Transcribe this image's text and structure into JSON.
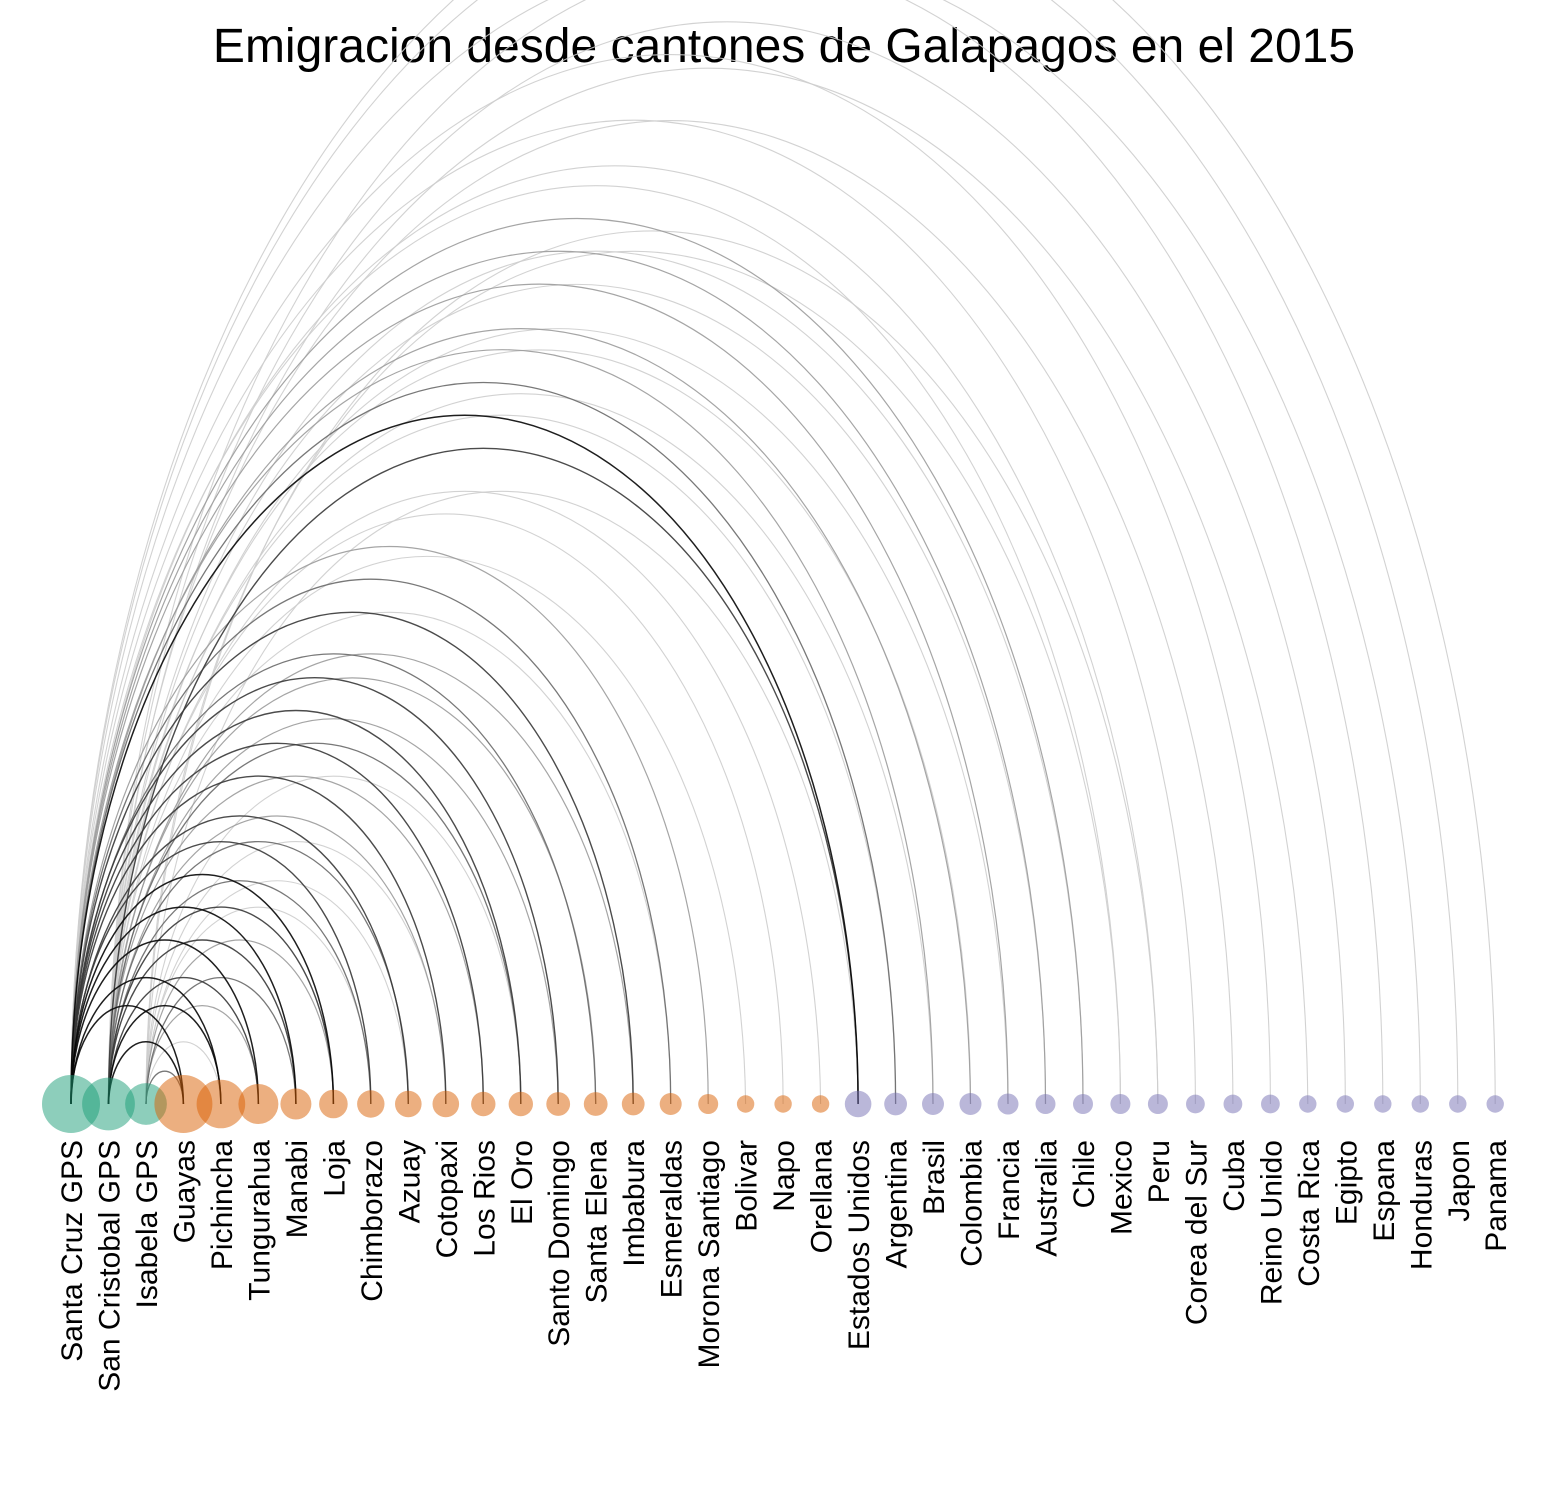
{
  "chart_data": {
    "type": "arc-diagram",
    "title": "Emigracion desde cantones de Galapagos en el 2015",
    "groups": {
      "galapagos": {
        "color": "#1b9e77"
      },
      "ecuador": {
        "color": "#d95f02"
      },
      "foreign": {
        "color": "#7570b3"
      }
    },
    "nodes": [
      {
        "name": "Santa Cruz GPS",
        "group": "galapagos",
        "size": 100
      },
      {
        "name": "San Cristobal GPS",
        "group": "galapagos",
        "size": 80
      },
      {
        "name": "Isabela GPS",
        "group": "galapagos",
        "size": 45
      },
      {
        "name": "Guayas",
        "group": "ecuador",
        "size": 100
      },
      {
        "name": "Pichincha",
        "group": "ecuador",
        "size": 65
      },
      {
        "name": "Tungurahua",
        "group": "ecuador",
        "size": 40
      },
      {
        "name": "Manabi",
        "group": "ecuador",
        "size": 20
      },
      {
        "name": "Loja",
        "group": "ecuador",
        "size": 16
      },
      {
        "name": "Chimborazo",
        "group": "ecuador",
        "size": 14
      },
      {
        "name": "Azuay",
        "group": "ecuador",
        "size": 13
      },
      {
        "name": "Cotopaxi",
        "group": "ecuador",
        "size": 13
      },
      {
        "name": "Los Rios",
        "group": "ecuador",
        "size": 10
      },
      {
        "name": "El Oro",
        "group": "ecuador",
        "size": 10
      },
      {
        "name": "Santo Domingo",
        "group": "ecuador",
        "size": 9
      },
      {
        "name": "Santa Elena",
        "group": "ecuador",
        "size": 9
      },
      {
        "name": "Imbabura",
        "group": "ecuador",
        "size": 8
      },
      {
        "name": "Esmeraldas",
        "group": "ecuador",
        "size": 7
      },
      {
        "name": "Morona Santiago",
        "group": "ecuador",
        "size": 5
      },
      {
        "name": "Bolivar",
        "group": "ecuador",
        "size": 3
      },
      {
        "name": "Napo",
        "group": "ecuador",
        "size": 3
      },
      {
        "name": "Orellana",
        "group": "ecuador",
        "size": 3
      },
      {
        "name": "Estados Unidos",
        "group": "foreign",
        "size": 13
      },
      {
        "name": "Argentina",
        "group": "foreign",
        "size": 8
      },
      {
        "name": "Brasil",
        "group": "foreign",
        "size": 7
      },
      {
        "name": "Colombia",
        "group": "foreign",
        "size": 7
      },
      {
        "name": "Francia",
        "group": "foreign",
        "size": 6
      },
      {
        "name": "Australia",
        "group": "foreign",
        "size": 5
      },
      {
        "name": "Chile",
        "group": "foreign",
        "size": 5
      },
      {
        "name": "Mexico",
        "group": "foreign",
        "size": 5
      },
      {
        "name": "Peru",
        "group": "foreign",
        "size": 5
      },
      {
        "name": "Corea del Sur",
        "group": "foreign",
        "size": 4
      },
      {
        "name": "Cuba",
        "group": "foreign",
        "size": 4
      },
      {
        "name": "Reino Unido",
        "group": "foreign",
        "size": 4
      },
      {
        "name": "Costa Rica",
        "group": "foreign",
        "size": 3
      },
      {
        "name": "Egipto",
        "group": "foreign",
        "size": 3
      },
      {
        "name": "Espana",
        "group": "foreign",
        "size": 3
      },
      {
        "name": "Honduras",
        "group": "foreign",
        "size": 3
      },
      {
        "name": "Japon",
        "group": "foreign",
        "size": 3
      },
      {
        "name": "Panama",
        "group": "foreign",
        "size": 3
      }
    ],
    "edges": [
      {
        "source": "Santa Cruz GPS",
        "target": "Guayas",
        "weight": 5
      },
      {
        "source": "Santa Cruz GPS",
        "target": "Pichincha",
        "weight": 5
      },
      {
        "source": "Santa Cruz GPS",
        "target": "Tungurahua",
        "weight": 5
      },
      {
        "source": "Santa Cruz GPS",
        "target": "Manabi",
        "weight": 5
      },
      {
        "source": "Santa Cruz GPS",
        "target": "Loja",
        "weight": 5
      },
      {
        "source": "Santa Cruz GPS",
        "target": "Chimborazo",
        "weight": 4
      },
      {
        "source": "Santa Cruz GPS",
        "target": "Azuay",
        "weight": 4
      },
      {
        "source": "Santa Cruz GPS",
        "target": "Cotopaxi",
        "weight": 4
      },
      {
        "source": "Santa Cruz GPS",
        "target": "Los Rios",
        "weight": 4
      },
      {
        "source": "Santa Cruz GPS",
        "target": "El Oro",
        "weight": 4
      },
      {
        "source": "Santa Cruz GPS",
        "target": "Santo Domingo",
        "weight": 4
      },
      {
        "source": "Santa Cruz GPS",
        "target": "Santa Elena",
        "weight": 3
      },
      {
        "source": "Santa Cruz GPS",
        "target": "Imbabura",
        "weight": 4
      },
      {
        "source": "Santa Cruz GPS",
        "target": "Esmeraldas",
        "weight": 3
      },
      {
        "source": "Santa Cruz GPS",
        "target": "Morona Santiago",
        "weight": 2
      },
      {
        "source": "Santa Cruz GPS",
        "target": "Estados Unidos",
        "weight": 5
      },
      {
        "source": "Santa Cruz GPS",
        "target": "Argentina",
        "weight": 3
      },
      {
        "source": "Santa Cruz GPS",
        "target": "Brasil",
        "weight": 2
      },
      {
        "source": "Santa Cruz GPS",
        "target": "Colombia",
        "weight": 2
      },
      {
        "source": "Santa Cruz GPS",
        "target": "Francia",
        "weight": 2
      },
      {
        "source": "Santa Cruz GPS",
        "target": "Australia",
        "weight": 2
      },
      {
        "source": "Santa Cruz GPS",
        "target": "Chile",
        "weight": 2
      },
      {
        "source": "Santa Cruz GPS",
        "target": "Mexico",
        "weight": 1
      },
      {
        "source": "Santa Cruz GPS",
        "target": "Peru",
        "weight": 1
      },
      {
        "source": "Santa Cruz GPS",
        "target": "Corea del Sur",
        "weight": 1
      },
      {
        "source": "Santa Cruz GPS",
        "target": "Reino Unido",
        "weight": 1
      },
      {
        "source": "Santa Cruz GPS",
        "target": "Espana",
        "weight": 1
      },
      {
        "source": "Santa Cruz GPS",
        "target": "Japon",
        "weight": 1
      },
      {
        "source": "Santa Cruz GPS",
        "target": "Panama",
        "weight": 1
      },
      {
        "source": "San Cristobal GPS",
        "target": "Guayas",
        "weight": 5
      },
      {
        "source": "San Cristobal GPS",
        "target": "Pichincha",
        "weight": 5
      },
      {
        "source": "San Cristobal GPS",
        "target": "Tungurahua",
        "weight": 4
      },
      {
        "source": "San Cristobal GPS",
        "target": "Manabi",
        "weight": 4
      },
      {
        "source": "San Cristobal GPS",
        "target": "Loja",
        "weight": 4
      },
      {
        "source": "San Cristobal GPS",
        "target": "Chimborazo",
        "weight": 3
      },
      {
        "source": "San Cristobal GPS",
        "target": "Azuay",
        "weight": 3
      },
      {
        "source": "San Cristobal GPS",
        "target": "Cotopaxi",
        "weight": 2
      },
      {
        "source": "San Cristobal GPS",
        "target": "Los Rios",
        "weight": 2
      },
      {
        "source": "San Cristobal GPS",
        "target": "El Oro",
        "weight": 3
      },
      {
        "source": "San Cristobal GPS",
        "target": "Santo Domingo",
        "weight": 2
      },
      {
        "source": "San Cristobal GPS",
        "target": "Santa Elena",
        "weight": 2
      },
      {
        "source": "San Cristobal GPS",
        "target": "Imbabura",
        "weight": 2
      },
      {
        "source": "San Cristobal GPS",
        "target": "Esmeraldas",
        "weight": 1
      },
      {
        "source": "San Cristobal GPS",
        "target": "Bolivar",
        "weight": 1
      },
      {
        "source": "San Cristobal GPS",
        "target": "Napo",
        "weight": 1
      },
      {
        "source": "San Cristobal GPS",
        "target": "Orellana",
        "weight": 1
      },
      {
        "source": "San Cristobal GPS",
        "target": "Estados Unidos",
        "weight": 4
      },
      {
        "source": "San Cristobal GPS",
        "target": "Argentina",
        "weight": 1
      },
      {
        "source": "San Cristobal GPS",
        "target": "Brasil",
        "weight": 1
      },
      {
        "source": "San Cristobal GPS",
        "target": "Colombia",
        "weight": 1
      },
      {
        "source": "San Cristobal GPS",
        "target": "Francia",
        "weight": 1
      },
      {
        "source": "San Cristobal GPS",
        "target": "Australia",
        "weight": 1
      },
      {
        "source": "San Cristobal GPS",
        "target": "Chile",
        "weight": 1
      },
      {
        "source": "San Cristobal GPS",
        "target": "Cuba",
        "weight": 1
      },
      {
        "source": "San Cristobal GPS",
        "target": "Costa Rica",
        "weight": 1
      },
      {
        "source": "San Cristobal GPS",
        "target": "Egipto",
        "weight": 1
      },
      {
        "source": "San Cristobal GPS",
        "target": "Honduras",
        "weight": 1
      },
      {
        "source": "Isabela GPS",
        "target": "Guayas",
        "weight": 3
      },
      {
        "source": "Isabela GPS",
        "target": "Pichincha",
        "weight": 1
      },
      {
        "source": "Isabela GPS",
        "target": "Tungurahua",
        "weight": 2
      },
      {
        "source": "Isabela GPS",
        "target": "Manabi",
        "weight": 3
      },
      {
        "source": "Isabela GPS",
        "target": "Loja",
        "weight": 2
      },
      {
        "source": "Isabela GPS",
        "target": "Chimborazo",
        "weight": 1
      },
      {
        "source": "Isabela GPS",
        "target": "Azuay",
        "weight": 1
      },
      {
        "source": "Isabela GPS",
        "target": "Cotopaxi",
        "weight": 1
      },
      {
        "source": "Isabela GPS",
        "target": "El Oro",
        "weight": 1
      },
      {
        "source": "Isabela GPS",
        "target": "Estados Unidos",
        "weight": 1
      },
      {
        "source": "Isabela GPS",
        "target": "Mexico",
        "weight": 1
      },
      {
        "source": "Isabela GPS",
        "target": "Peru",
        "weight": 1
      }
    ]
  }
}
